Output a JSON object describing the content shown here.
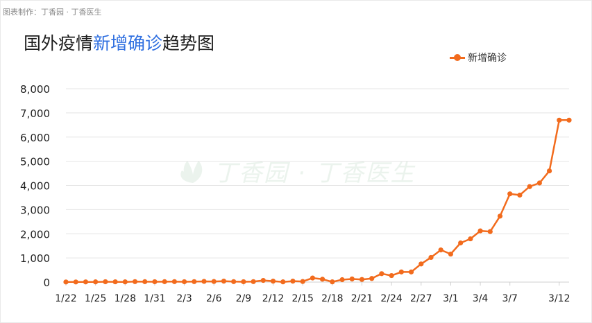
{
  "credit": "图表制作：丁香园 · 丁香医生",
  "title_prefix": "国外疫情",
  "title_highlight": "新增确诊",
  "title_suffix": "趋势图",
  "watermark": "丁香园 · 丁香医生",
  "colors": {
    "series": "#f26b1d",
    "title_highlight": "#2f6fe0",
    "grid": "#e4e4e4"
  },
  "chart_data": {
    "type": "line",
    "legend_position": "top-right",
    "grid": true,
    "ylim": [
      0,
      8000
    ],
    "yticks": [
      "0",
      "1,000",
      "2,000",
      "3,000",
      "4,000",
      "5,000",
      "6,000",
      "7,000",
      "8,000"
    ],
    "xticks": [
      "1/22",
      "1/25",
      "1/28",
      "1/31",
      "2/3",
      "2/6",
      "2/9",
      "2/12",
      "2/15",
      "2/18",
      "2/21",
      "2/24",
      "2/27",
      "3/1",
      "3/4",
      "3/7",
      "3/12"
    ],
    "series": [
      {
        "name": "新增确诊",
        "x": [
          "1/22",
          "1/23",
          "1/24",
          "1/25",
          "1/26",
          "1/27",
          "1/28",
          "1/29",
          "1/30",
          "1/31",
          "2/1",
          "2/2",
          "2/3",
          "2/4",
          "2/5",
          "2/6",
          "2/7",
          "2/8",
          "2/9",
          "2/10",
          "2/11",
          "2/12",
          "2/13",
          "2/14",
          "2/15",
          "2/16",
          "2/17",
          "2/18",
          "2/19",
          "2/20",
          "2/21",
          "2/22",
          "2/23",
          "2/24",
          "2/25",
          "2/26",
          "2/27",
          "2/28",
          "2/29",
          "3/1",
          "3/2",
          "3/3",
          "3/4",
          "3/5",
          "3/6",
          "3/7",
          "3/8",
          "3/9",
          "3/10",
          "3/11",
          "3/12",
          "3/13"
        ],
        "values": [
          5,
          6,
          8,
          10,
          15,
          12,
          10,
          20,
          18,
          15,
          18,
          20,
          15,
          20,
          30,
          25,
          40,
          20,
          15,
          20,
          70,
          40,
          10,
          40,
          25,
          170,
          120,
          10,
          100,
          130,
          110,
          150,
          350,
          270,
          420,
          420,
          750,
          1020,
          1330,
          1160,
          1620,
          1790,
          2120,
          2090,
          2730,
          3650,
          3600,
          3950,
          4100,
          4600,
          6700,
          6700
        ]
      }
    ]
  }
}
